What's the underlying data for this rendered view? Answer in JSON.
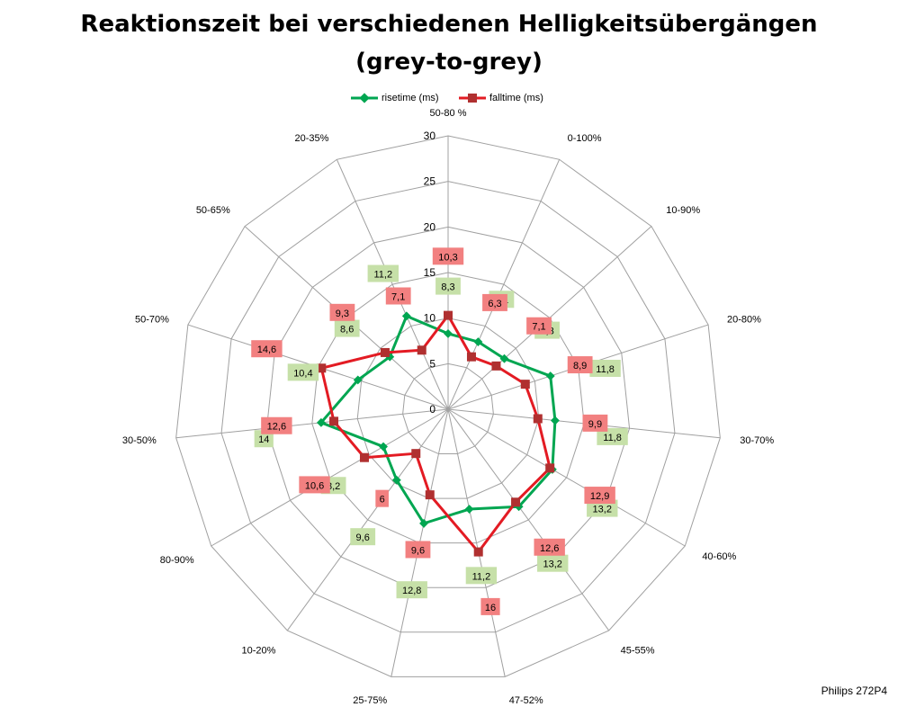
{
  "title_line1": "Reaktionszeit bei verschiedenen Helligkeitsübergängen",
  "title_line2": "(grey-to-grey)",
  "credit": "Philips 272P4",
  "legend": {
    "rise": "risetime (ms)",
    "fall": "falltime (ms)"
  },
  "colors": {
    "rise": "#00a651",
    "fall": "#e31b23",
    "rise_label_bg": "#c6e0a8",
    "fall_label_bg": "#f28080",
    "grid": "#a0a0a0"
  },
  "chart_data": {
    "type": "radar",
    "categories": [
      "50-80 %",
      "0-100%",
      "10-90%",
      "20-80%",
      "30-70%",
      "40-60%",
      "45-55%",
      "47-52%",
      "25-75%",
      "10-20%",
      "80-90%",
      "30-50%",
      "50-70%",
      "50-65%",
      "20-35%"
    ],
    "series": [
      {
        "name": "risetime (ms)",
        "values": [
          8.3,
          8.1,
          8.3,
          11.8,
          11.8,
          13.2,
          13.2,
          11.2,
          12.8,
          9.6,
          8.2,
          14,
          10.4,
          8.6,
          11.2
        ],
        "labels": [
          "8,3",
          "8,1",
          "8,3",
          "11,8",
          "11,8",
          "13,2",
          "13,2",
          "11,2",
          "12,8",
          "9,6",
          "8,2",
          "14",
          "10,4",
          "8,6",
          "11,2"
        ]
      },
      {
        "name": "falltime (ms)",
        "values": [
          10.3,
          6.3,
          7.1,
          8.9,
          9.9,
          12.9,
          12.6,
          16,
          9.6,
          6,
          10.6,
          12.6,
          14.6,
          9.3,
          7.1
        ],
        "labels": [
          "10,3",
          "6,3",
          "7,1",
          "8,9",
          "9,9",
          "12,9",
          "12,6",
          "16",
          "9,6",
          "6",
          "10,6",
          "12,6",
          "14,6",
          "9,3",
          "7,1"
        ]
      }
    ],
    "rlim": [
      0,
      30
    ],
    "ticks": [
      "0",
      "5",
      "10",
      "15",
      "20",
      "25",
      "30"
    ],
    "legend_position": "top"
  }
}
